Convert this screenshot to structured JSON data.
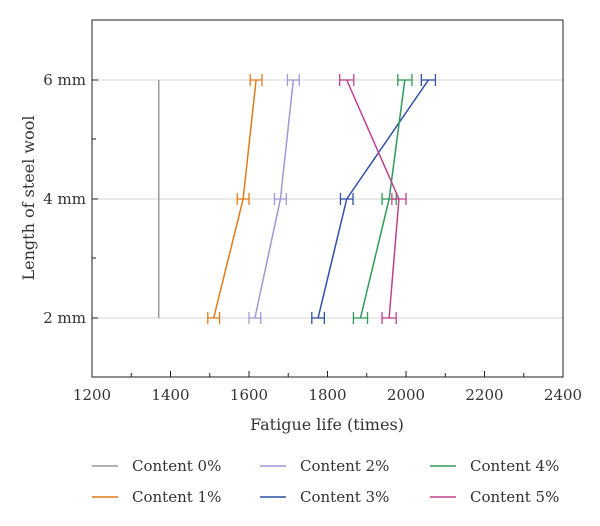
{
  "chart_data": {
    "type": "line",
    "orientation": "horizontal-x-values",
    "title": "",
    "xlabel": "Fatigue life (times)",
    "ylabel": "Length of steel wool",
    "xlim": [
      1200,
      2400
    ],
    "x_ticks": [
      1200,
      1400,
      1600,
      1800,
      2000,
      2200,
      2400
    ],
    "x_tick_labels": [
      "1200",
      "1400",
      "1600",
      "1800",
      "2000",
      "2200",
      "2400"
    ],
    "categories": [
      "2 mm",
      "4 mm",
      "6 mm"
    ],
    "grid": "horizontal",
    "legend_position": "bottom",
    "series": [
      {
        "name": "Content 0%",
        "color": "#999999",
        "values": [
          1370,
          1370,
          1370
        ],
        "errors": null
      },
      {
        "name": "Content 1%",
        "color": "#e07b1a",
        "values": [
          1510,
          1585,
          1618
        ],
        "errors": [
          15,
          15,
          15
        ]
      },
      {
        "name": "Content 2%",
        "color": "#9b9ad6",
        "values": [
          1615,
          1680,
          1713
        ],
        "errors": [
          15,
          15,
          15
        ]
      },
      {
        "name": "Content 3%",
        "color": "#2f4fa8",
        "values": [
          1776,
          1849,
          2057
        ],
        "errors": [
          16,
          16,
          18
        ]
      },
      {
        "name": "Content 4%",
        "color": "#2e9a5a",
        "values": [
          1884,
          1957,
          1997
        ],
        "errors": [
          18,
          18,
          18
        ]
      },
      {
        "name": "Content 5%",
        "color": "#c0408e",
        "values": [
          1957,
          1982,
          1849
        ],
        "errors": [
          18,
          18,
          18
        ]
      }
    ]
  }
}
